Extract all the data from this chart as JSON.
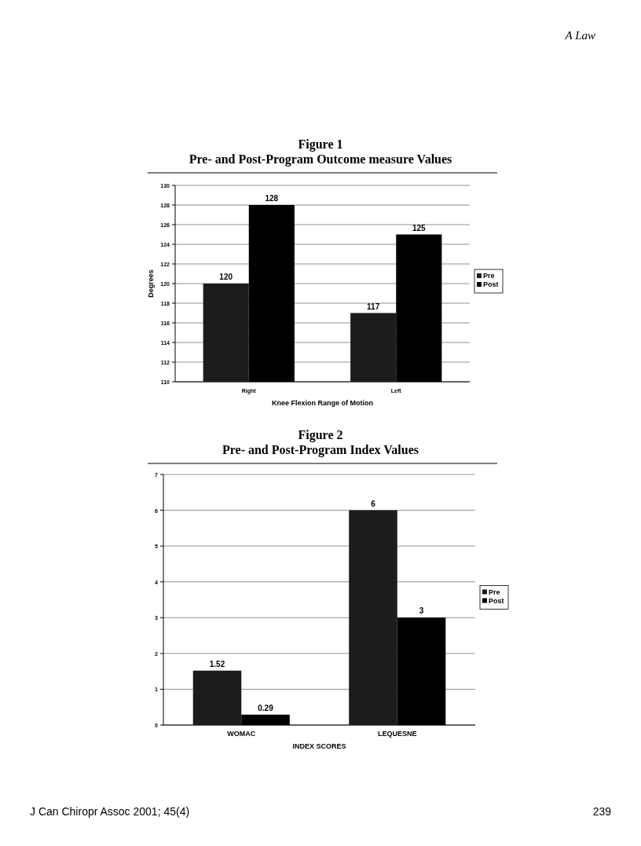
{
  "chart_data": [
    {
      "type": "bar",
      "title": "Figure 1",
      "subtitle": "Pre- and Post-Program Outcome measure Values",
      "xlabel": "Knee Flexion Range of Motion",
      "ylabel": "Degrees",
      "categories": [
        "Right",
        "Left"
      ],
      "series": [
        {
          "name": "Pre",
          "color": "#1c1c1c",
          "values": [
            120,
            117
          ]
        },
        {
          "name": "Post",
          "color": "#000000",
          "values": [
            128,
            125
          ]
        }
      ],
      "ylim": [
        110,
        130
      ],
      "yticks": [
        110,
        112,
        114,
        116,
        118,
        120,
        122,
        124,
        126,
        128,
        130
      ],
      "grid": "y",
      "legend": "right",
      "data_labels": true,
      "annotations": [
        "A Law"
      ]
    },
    {
      "type": "bar",
      "title": "Figure 2",
      "subtitle": "Pre- and Post-Program Index Values",
      "xlabel": "INDEX SCORES",
      "categories": [
        "WOMAC",
        "LEQUESNE"
      ],
      "series": [
        {
          "name": "Pre",
          "color": "#1c1c1c",
          "values": [
            1.52,
            6
          ]
        },
        {
          "name": "Post",
          "color": "#000000",
          "values": [
            0.29,
            3
          ]
        }
      ],
      "ylim": [
        0,
        7
      ],
      "yticks": [
        0,
        1,
        2,
        3,
        4,
        5,
        6,
        7
      ],
      "grid": "y",
      "legend": "right",
      "data_labels": true,
      "annotations": [
        "J Can Chiropr Assoc 2001; 45(4)",
        "239"
      ]
    }
  ]
}
